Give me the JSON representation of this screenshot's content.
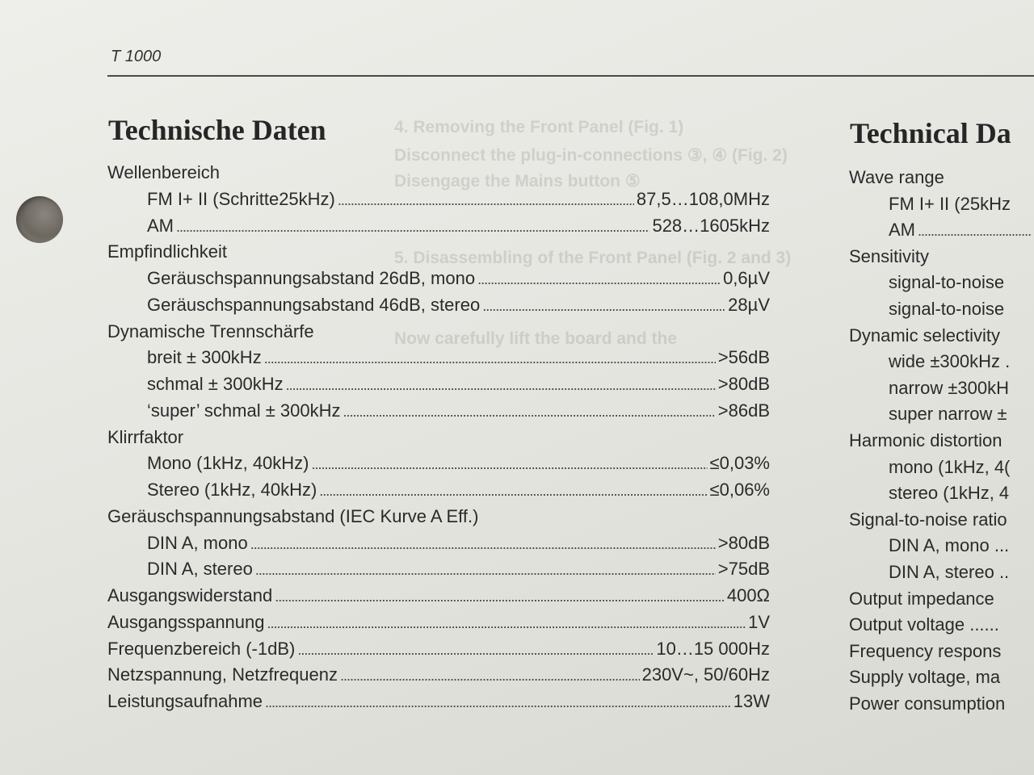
{
  "header": {
    "model": "T 1000"
  },
  "ghost_text": [
    "4. Removing the Front Panel (Fig. 1)",
    "Disconnect the plug-in-connections ③, ④ (Fig. 2)",
    "Disengage the Mains button ⑤",
    "5. Disassembling of the Front Panel (Fig. 2 and 3)",
    "Now carefully lift the board and the"
  ],
  "german": {
    "heading": "Technische Daten",
    "rows": [
      {
        "label": "Wellenbereich",
        "value": "",
        "indent": 0
      },
      {
        "label": "FM I+ II (Schritte25kHz)",
        "value": "87,5…108,0MHz",
        "indent": 1
      },
      {
        "label": "AM",
        "value": "528…1605kHz",
        "indent": 1
      },
      {
        "label": "Empfindlichkeit",
        "value": "",
        "indent": 0
      },
      {
        "label": "Geräuschspannungsabstand 26dB, mono",
        "value": "0,6µV",
        "indent": 1
      },
      {
        "label": "Geräuschspannungsabstand 46dB, stereo",
        "value": "28µV",
        "indent": 1
      },
      {
        "label": "Dynamische Trennschärfe",
        "value": "",
        "indent": 0
      },
      {
        "label": "breit ± 300kHz",
        "value": ">56dB",
        "indent": 1
      },
      {
        "label": "schmal ± 300kHz",
        "value": ">80dB",
        "indent": 1
      },
      {
        "label": "‘super’ schmal ± 300kHz",
        "value": ">86dB",
        "indent": 1
      },
      {
        "label": "Klirrfaktor",
        "value": "",
        "indent": 0
      },
      {
        "label": "Mono (1kHz, 40kHz)",
        "value": "≤0,03%",
        "indent": 1
      },
      {
        "label": "Stereo (1kHz, 40kHz)",
        "value": "≤0,06%",
        "indent": 1
      },
      {
        "label": "Geräuschspannungsabstand (IEC Kurve A Eff.)",
        "value": "",
        "indent": 0
      },
      {
        "label": "DIN A, mono",
        "value": ">80dB",
        "indent": 1
      },
      {
        "label": "DIN A, stereo",
        "value": ">75dB",
        "indent": 1
      },
      {
        "label": "Ausgangswiderstand",
        "value": "400Ω",
        "indent": 0
      },
      {
        "label": "Ausgangsspannung",
        "value": "1V",
        "indent": 0
      },
      {
        "label": "Frequenzbereich (-1dB)",
        "value": "10…15 000Hz",
        "indent": 0
      },
      {
        "label": "Netzspannung, Netzfrequenz",
        "value": "230V~, 50/60Hz",
        "indent": 0
      },
      {
        "label": "Leistungsaufnahme",
        "value": "13W",
        "indent": 0
      }
    ]
  },
  "english": {
    "heading": "Technical Da",
    "rows": [
      {
        "label": "Wave range",
        "indent": 0
      },
      {
        "label": "FM I+ II (25kHz",
        "indent": 1
      },
      {
        "label": "AM",
        "indent": 1,
        "dots": true
      },
      {
        "label": "Sensitivity",
        "indent": 0
      },
      {
        "label": "signal-to-noise",
        "indent": 1
      },
      {
        "label": "signal-to-noise",
        "indent": 1
      },
      {
        "label": "Dynamic selectivity",
        "indent": 0
      },
      {
        "label": "wide ±300kHz .",
        "indent": 1
      },
      {
        "label": "narrow ±300kH",
        "indent": 1
      },
      {
        "label": "super narrow ±",
        "indent": 1
      },
      {
        "label": "Harmonic distortion",
        "indent": 0
      },
      {
        "label": "mono (1kHz, 4(",
        "indent": 1
      },
      {
        "label": "stereo (1kHz, 4",
        "indent": 1
      },
      {
        "label": "Signal-to-noise ratio",
        "indent": 0
      },
      {
        "label": "DIN A, mono ...",
        "indent": 1
      },
      {
        "label": "DIN A, stereo ..",
        "indent": 1
      },
      {
        "label": "Output impedance",
        "indent": 0
      },
      {
        "label": "Output voltage ......",
        "indent": 0
      },
      {
        "label": "Frequency respons",
        "indent": 0
      },
      {
        "label": "Supply voltage, ma",
        "indent": 0
      },
      {
        "label": "Power consumption",
        "indent": 0
      }
    ]
  }
}
